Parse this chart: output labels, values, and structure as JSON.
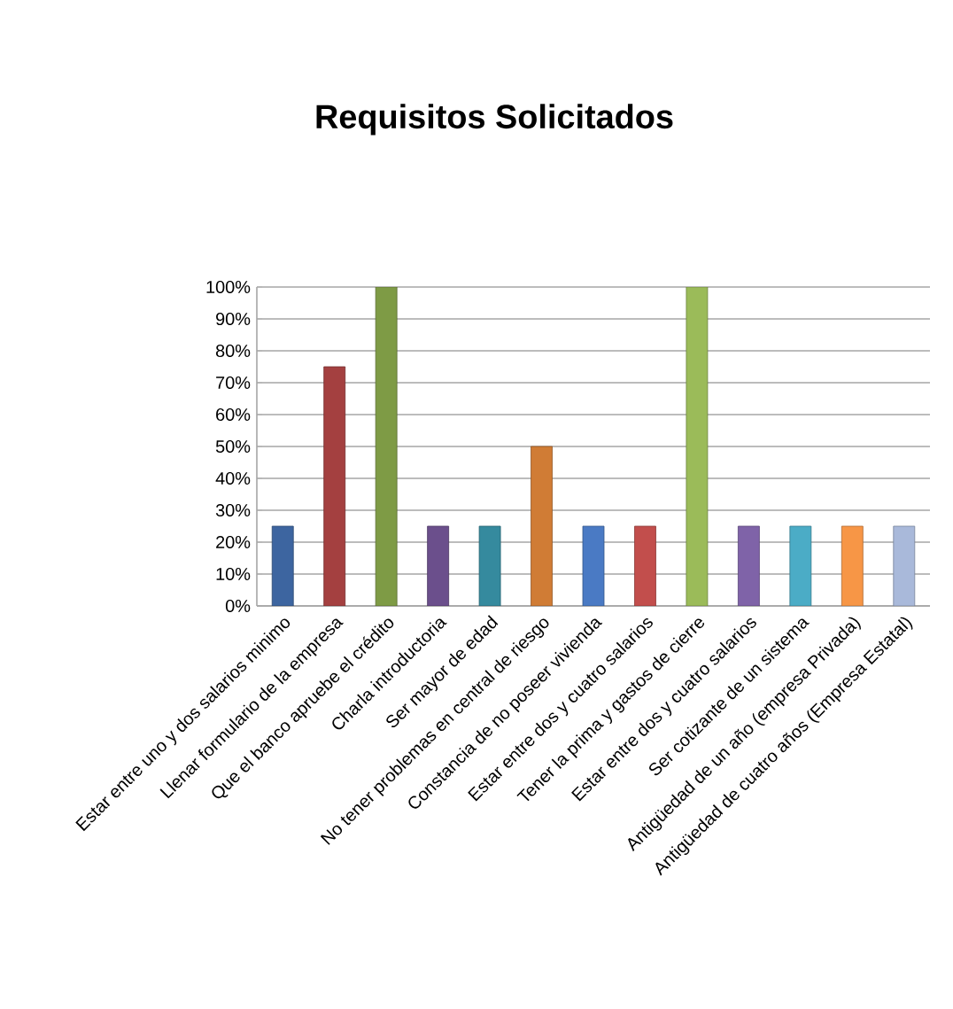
{
  "chart_data": {
    "type": "bar",
    "title": "Requisitos Solicitados",
    "categories": [
      "Estar entre uno y dos salarios minimo",
      "Llenar formulario de la empresa",
      "Que el banco apruebe el crédito",
      "Charla introductoria",
      "Ser mayor de edad",
      "No tener problemas en central de riesgo",
      "Constancia de no poseer vivienda",
      "Estar entre dos y cuatro salarios",
      "Tener la prima y gastos de cierre",
      "Estar entre dos y cuatro salarios",
      "Ser cotizante de un sistema",
      "Antigüedad de un año (empresa Privada)",
      "Antigüedad de cuatro años (Empresa Estatal)"
    ],
    "values": [
      25,
      75,
      100,
      25,
      25,
      50,
      25,
      25,
      100,
      25,
      25,
      25,
      25
    ],
    "colors": [
      "#3d65a0",
      "#a44040",
      "#7e9b45",
      "#6b4f8c",
      "#358a9e",
      "#d07c35",
      "#4a7ac4",
      "#c24e4c",
      "#9bbb59",
      "#7f63a8",
      "#4bacc6",
      "#f79646",
      "#a9b9da"
    ],
    "ylim": [
      0,
      100
    ],
    "yticks": [
      {
        "value": 0,
        "label": "0%"
      },
      {
        "value": 10,
        "label": "10%"
      },
      {
        "value": 20,
        "label": "20%"
      },
      {
        "value": 30,
        "label": "30%"
      },
      {
        "value": 40,
        "label": "40%"
      },
      {
        "value": 50,
        "label": "50%"
      },
      {
        "value": 60,
        "label": "60%"
      },
      {
        "value": 70,
        "label": "70%"
      },
      {
        "value": 80,
        "label": "80%"
      },
      {
        "value": 90,
        "label": "90%"
      },
      {
        "value": 100,
        "label": "100%"
      }
    ],
    "grid": "y"
  }
}
